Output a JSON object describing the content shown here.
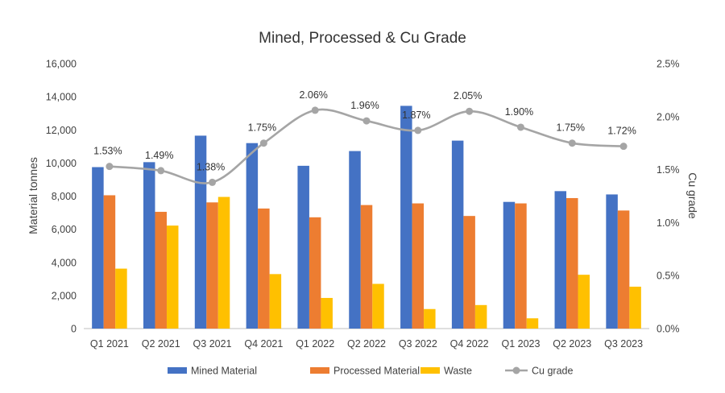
{
  "chart_data": {
    "type": "bar",
    "title": "Mined, Processed & Cu Grade",
    "categories": [
      "Q1 2021",
      "Q2 2021",
      "Q3 2021",
      "Q4 2021",
      "Q1 2022",
      "Q2 2022",
      "Q3 2022",
      "Q4 2022",
      "Q1 2023",
      "Q2 2023",
      "Q3 2023"
    ],
    "series": [
      {
        "name": "Mined Material",
        "type": "bar",
        "axis": "left",
        "color": "#4472C4",
        "values": [
          9750,
          10050,
          11650,
          11200,
          9830,
          10720,
          13450,
          11350,
          7650,
          8300,
          8100
        ]
      },
      {
        "name": "Processed Material",
        "type": "bar",
        "axis": "left",
        "color": "#ED7D31",
        "values": [
          8050,
          7050,
          7620,
          7250,
          6720,
          7460,
          7560,
          6800,
          7560,
          7880,
          7130
        ]
      },
      {
        "name": "Waste",
        "type": "bar",
        "axis": "left",
        "color": "#FFC000",
        "values": [
          3620,
          6220,
          7950,
          3290,
          1850,
          2700,
          1180,
          1420,
          620,
          3250,
          2530
        ]
      },
      {
        "name": "Cu grade",
        "type": "line",
        "axis": "right",
        "color": "#A5A5A5",
        "values": [
          1.53,
          1.49,
          1.38,
          1.75,
          2.06,
          1.96,
          1.87,
          2.05,
          1.9,
          1.75,
          1.72
        ],
        "labels": [
          "1.53%",
          "1.49%",
          "1.38%",
          "1.75%",
          "2.06%",
          "1.96%",
          "1.87%",
          "2.05%",
          "1.90%",
          "1.75%",
          "1.72%"
        ]
      }
    ],
    "y_left": {
      "label": "Material tonnes",
      "min": 0,
      "max": 16000,
      "ticks": [
        0,
        2000,
        4000,
        6000,
        8000,
        10000,
        12000,
        14000,
        16000
      ],
      "tick_labels": [
        "0",
        "2,000",
        "4,000",
        "6,000",
        "8,000",
        "10,000",
        "12,000",
        "14,000",
        "16,000"
      ]
    },
    "y_right": {
      "label": "Cu grade",
      "min": 0,
      "max": 2.5,
      "ticks": [
        0,
        0.5,
        1.0,
        1.5,
        2.0,
        2.5
      ],
      "tick_labels": [
        "0.0%",
        "0.5%",
        "1.0%",
        "1.5%",
        "2.0%",
        "2.5%"
      ]
    },
    "legend": {
      "position": "bottom",
      "entries": [
        "Mined Material",
        "Processed Material",
        "Waste",
        "Cu grade"
      ]
    },
    "grid": false
  }
}
